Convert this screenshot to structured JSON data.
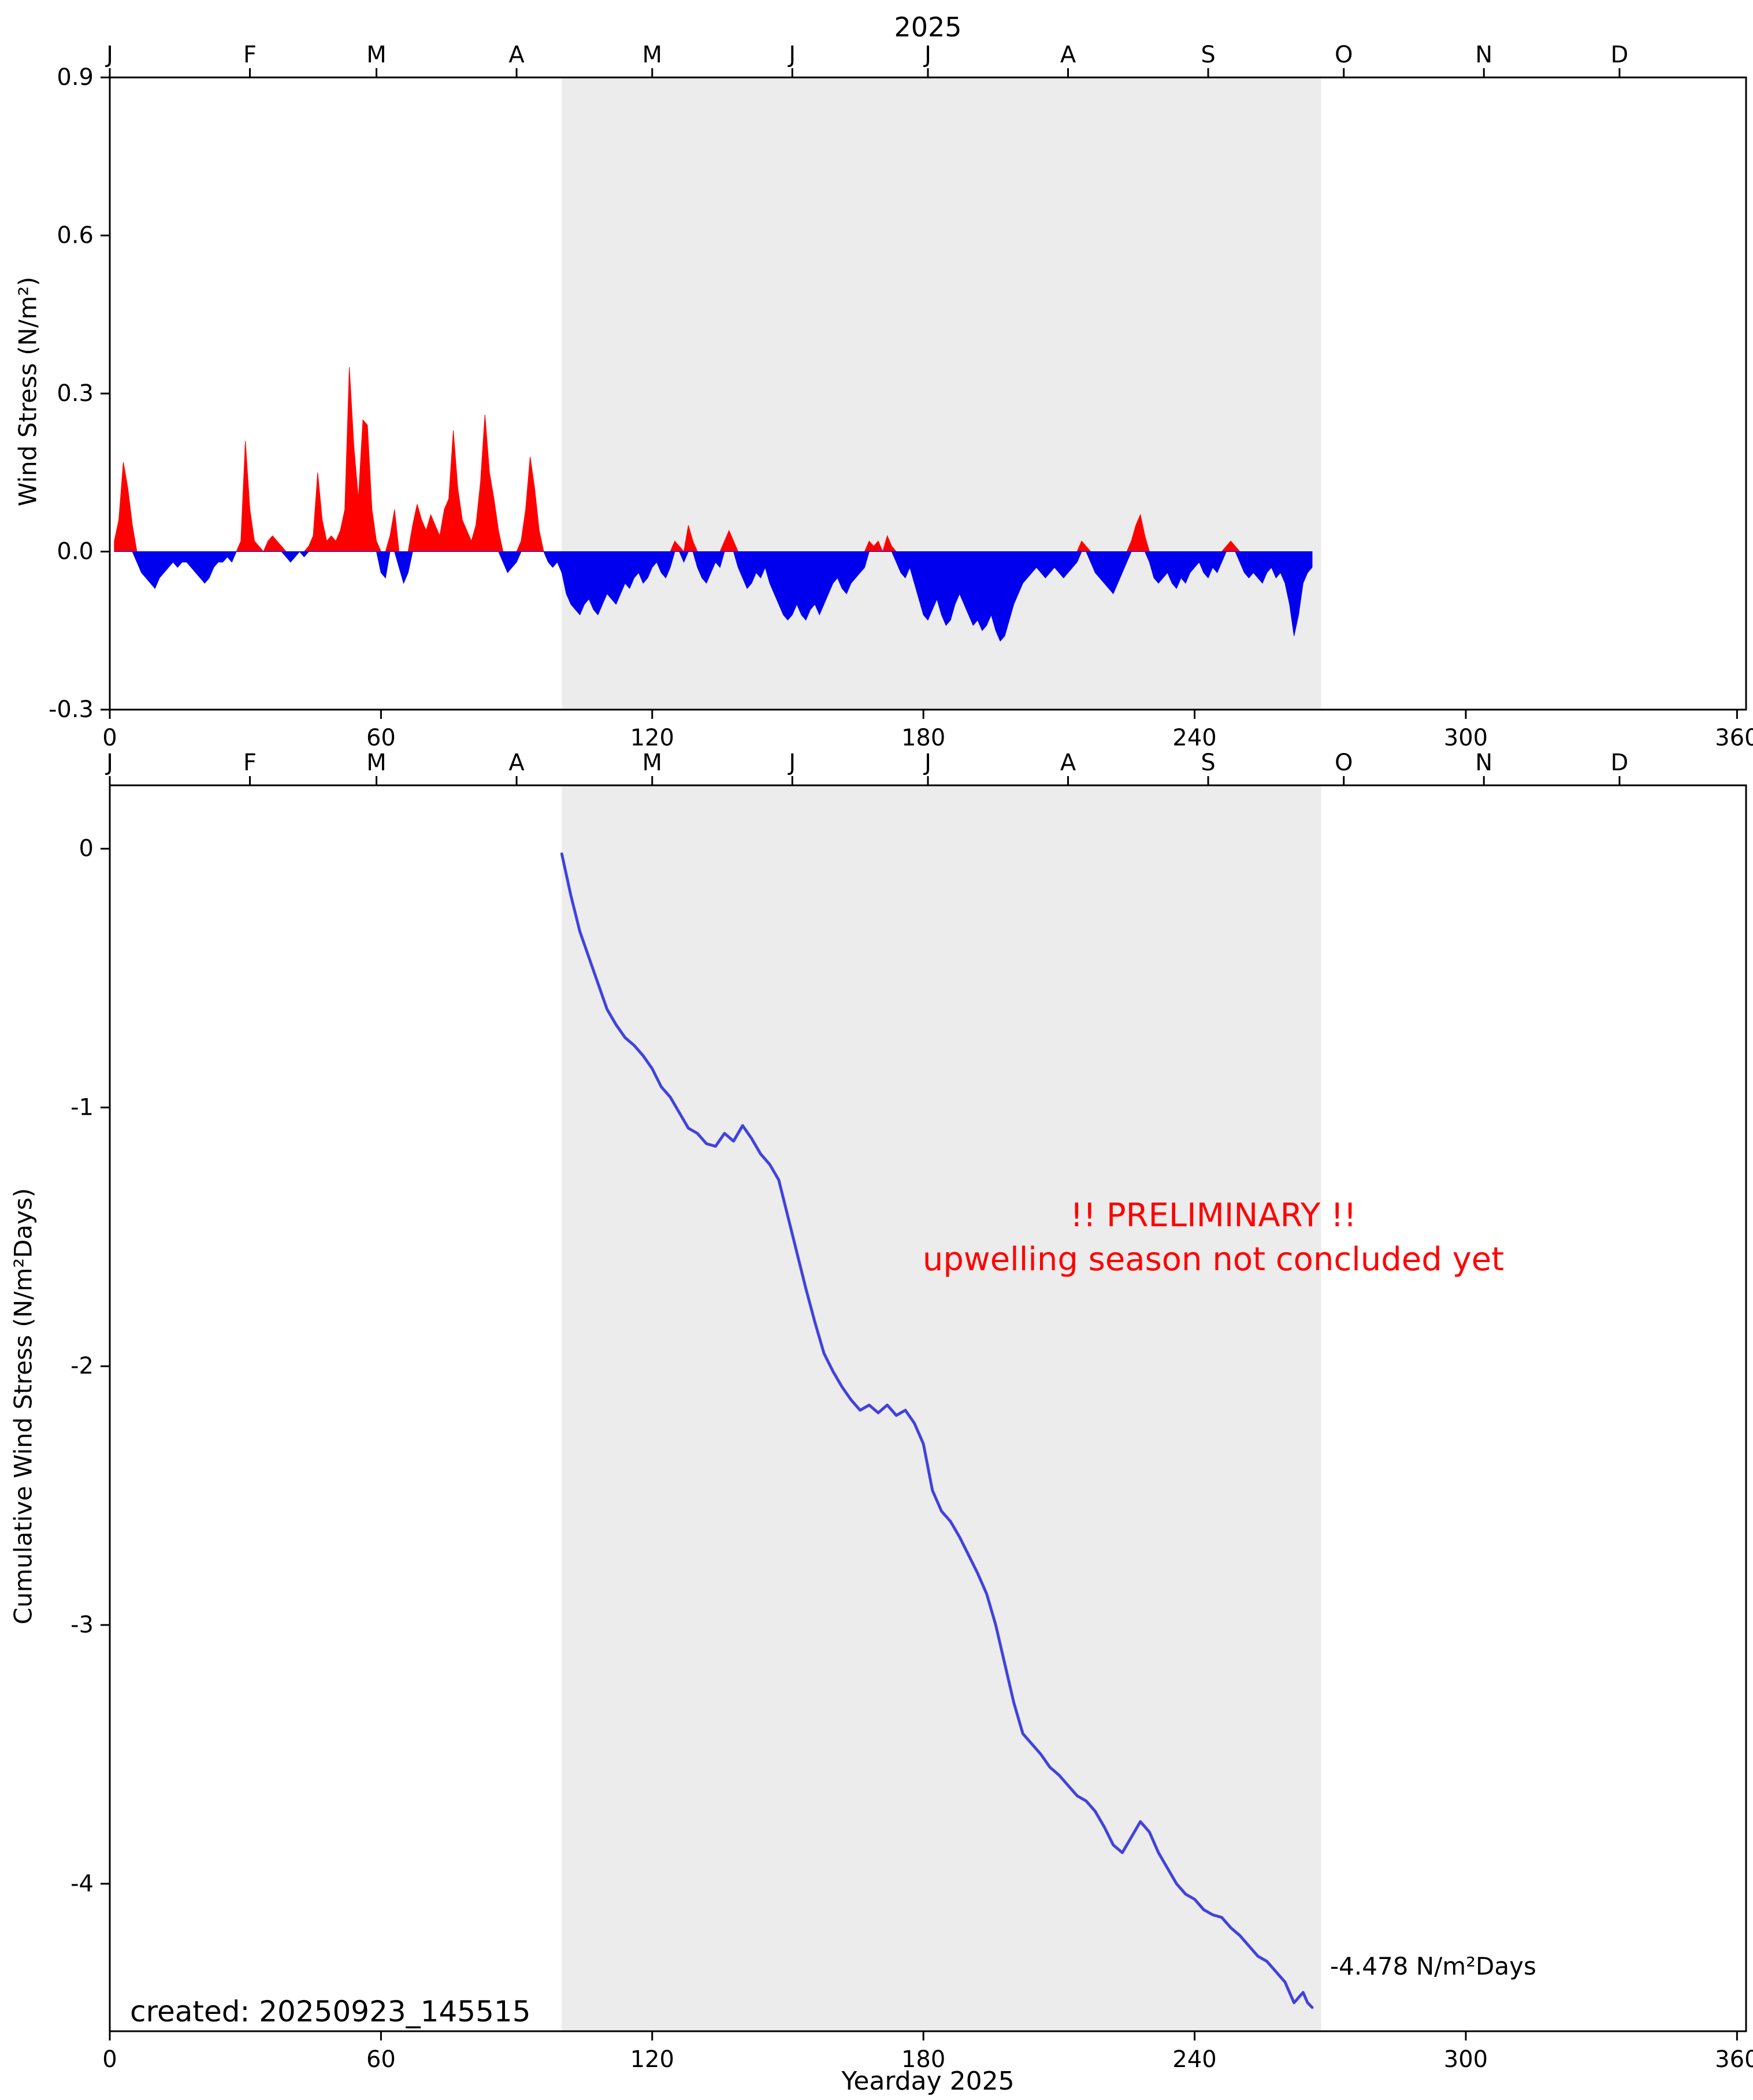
{
  "title": "2025",
  "created_label": "created: 20250923_145515",
  "final_annotation": "-4.478 N/m²Days",
  "x_label": "Yearday 2025",
  "x_range": [
    0,
    362
  ],
  "x_ticks": [
    0,
    60,
    120,
    180,
    240,
    300,
    360
  ],
  "months": [
    "J",
    "F",
    "M",
    "A",
    "M",
    "J",
    "J",
    "A",
    "S",
    "O",
    "N",
    "D"
  ],
  "month_start_days": [
    0,
    31,
    59,
    90,
    120,
    151,
    181,
    212,
    243,
    273,
    304,
    334
  ],
  "shade": {
    "start_day": 100,
    "end_day": 268,
    "color": "#ececec"
  },
  "preliminary": {
    "line1": "!! PRELIMINARY !!",
    "line2": "upwelling season not concluded yet",
    "color": "#ff0000"
  },
  "colors": {
    "positive": "#ff0000",
    "negative": "#0000ee",
    "cumulative_line": "#4242dd",
    "axis": "#000000"
  },
  "chart_data": [
    {
      "type": "area",
      "name": "wind-stress",
      "title": "2025",
      "ylabel": "Wind Stress (N/m²)",
      "ylim": [
        -0.3,
        0.9
      ],
      "yticks": [
        0.9,
        0.6,
        0.3,
        0.0,
        -0.3
      ],
      "ytick_labels": [
        "0.9",
        "0.6",
        "0.3",
        "0.0",
        "-0.3"
      ],
      "x_start_day": 1,
      "values": [
        0.02,
        0.06,
        0.17,
        0.12,
        0.05,
        -0.02,
        -0.04,
        -0.05,
        -0.06,
        -0.07,
        -0.05,
        -0.04,
        -0.03,
        -0.02,
        -0.03,
        -0.02,
        -0.02,
        -0.03,
        -0.04,
        -0.05,
        -0.06,
        -0.05,
        -0.03,
        -0.02,
        -0.02,
        -0.01,
        -0.02,
        0.0,
        0.02,
        0.21,
        0.08,
        0.02,
        0.01,
        0.0,
        0.02,
        0.03,
        0.02,
        0.01,
        -0.01,
        -0.02,
        -0.01,
        0.0,
        -0.01,
        0.01,
        0.03,
        0.15,
        0.06,
        0.02,
        0.03,
        0.02,
        0.04,
        0.08,
        0.35,
        0.2,
        0.1,
        0.25,
        0.24,
        0.08,
        0.02,
        -0.04,
        -0.05,
        0.03,
        0.08,
        -0.03,
        -0.06,
        -0.04,
        0.05,
        0.09,
        0.06,
        0.04,
        0.07,
        0.05,
        0.03,
        0.08,
        0.1,
        0.23,
        0.12,
        0.06,
        0.04,
        0.02,
        0.05,
        0.13,
        0.26,
        0.15,
        0.1,
        0.04,
        -0.02,
        -0.04,
        -0.03,
        -0.02,
        0.02,
        0.08,
        0.18,
        0.12,
        0.04,
        0.0,
        -0.02,
        -0.03,
        -0.02,
        -0.04,
        -0.08,
        -0.1,
        -0.11,
        -0.12,
        -0.1,
        -0.09,
        -0.11,
        -0.12,
        -0.1,
        -0.08,
        -0.09,
        -0.1,
        -0.08,
        -0.06,
        -0.07,
        -0.05,
        -0.04,
        -0.06,
        -0.05,
        -0.03,
        -0.02,
        -0.04,
        -0.05,
        -0.03,
        0.02,
        0.01,
        -0.02,
        0.05,
        0.02,
        -0.03,
        -0.05,
        -0.06,
        -0.04,
        -0.02,
        -0.03,
        0.02,
        0.04,
        0.02,
        -0.03,
        -0.05,
        -0.07,
        -0.06,
        -0.04,
        -0.05,
        -0.03,
        -0.06,
        -0.08,
        -0.1,
        -0.12,
        -0.13,
        -0.12,
        -0.1,
        -0.12,
        -0.13,
        -0.11,
        -0.1,
        -0.12,
        -0.1,
        -0.08,
        -0.06,
        -0.05,
        -0.07,
        -0.08,
        -0.06,
        -0.05,
        -0.04,
        -0.03,
        0.02,
        0.01,
        0.02,
        0.0,
        0.03,
        0.01,
        -0.02,
        -0.04,
        -0.05,
        -0.03,
        -0.06,
        -0.09,
        -0.12,
        -0.13,
        -0.11,
        -0.09,
        -0.12,
        -0.14,
        -0.13,
        -0.1,
        -0.08,
        -0.1,
        -0.12,
        -0.14,
        -0.13,
        -0.15,
        -0.14,
        -0.12,
        -0.15,
        -0.17,
        -0.16,
        -0.13,
        -0.1,
        -0.08,
        -0.06,
        -0.05,
        -0.04,
        -0.03,
        -0.04,
        -0.05,
        -0.04,
        -0.03,
        -0.04,
        -0.05,
        -0.04,
        -0.03,
        -0.02,
        0.02,
        0.01,
        -0.02,
        -0.04,
        -0.05,
        -0.06,
        -0.07,
        -0.08,
        -0.06,
        -0.04,
        -0.02,
        0.02,
        0.05,
        0.07,
        0.03,
        -0.02,
        -0.05,
        -0.06,
        -0.05,
        -0.04,
        -0.06,
        -0.07,
        -0.05,
        -0.06,
        -0.04,
        -0.03,
        -0.02,
        -0.04,
        -0.05,
        -0.03,
        -0.04,
        -0.02,
        0.01,
        0.02,
        0.01,
        -0.02,
        -0.04,
        -0.05,
        -0.04,
        -0.05,
        -0.06,
        -0.04,
        -0.03,
        -0.05,
        -0.04,
        -0.06,
        -0.1,
        -0.16,
        -0.12,
        -0.06,
        -0.04,
        -0.03
      ]
    },
    {
      "type": "line",
      "name": "cumulative-wind-stress",
      "ylabel": "Cumulative Wind Stress (N/m²Days)",
      "ylim": [
        -4.57,
        0.245
      ],
      "yticks": [
        0,
        -1,
        -2,
        -3,
        -4
      ],
      "ytick_labels": [
        "0",
        "-1",
        "-2",
        "-3",
        "-4"
      ],
      "final_value": -4.478,
      "x": [
        100,
        102,
        104,
        106,
        108,
        110,
        112,
        114,
        116,
        118,
        120,
        122,
        124,
        126,
        128,
        130,
        132,
        134,
        136,
        138,
        140,
        142,
        144,
        146,
        148,
        150,
        152,
        154,
        156,
        158,
        160,
        162,
        164,
        166,
        168,
        170,
        172,
        174,
        176,
        178,
        180,
        182,
        184,
        186,
        188,
        190,
        192,
        194,
        196,
        198,
        200,
        202,
        204,
        206,
        208,
        210,
        212,
        214,
        216,
        218,
        220,
        222,
        224,
        226,
        228,
        230,
        232,
        234,
        236,
        238,
        240,
        242,
        244,
        246,
        248,
        250,
        252,
        254,
        256,
        258,
        260,
        261,
        262,
        263,
        264,
        265,
        266
      ],
      "values": [
        -0.02,
        -0.18,
        -0.32,
        -0.42,
        -0.52,
        -0.62,
        -0.68,
        -0.73,
        -0.76,
        -0.8,
        -0.85,
        -0.92,
        -0.96,
        -1.02,
        -1.08,
        -1.1,
        -1.14,
        -1.15,
        -1.1,
        -1.13,
        -1.07,
        -1.12,
        -1.18,
        -1.22,
        -1.28,
        -1.42,
        -1.56,
        -1.7,
        -1.83,
        -1.95,
        -2.02,
        -2.08,
        -2.13,
        -2.17,
        -2.15,
        -2.18,
        -2.15,
        -2.19,
        -2.17,
        -2.22,
        -2.3,
        -2.48,
        -2.56,
        -2.6,
        -2.66,
        -2.73,
        -2.8,
        -2.88,
        -3.0,
        -3.15,
        -3.3,
        -3.42,
        -3.46,
        -3.5,
        -3.55,
        -3.58,
        -3.62,
        -3.66,
        -3.68,
        -3.72,
        -3.78,
        -3.85,
        -3.88,
        -3.82,
        -3.76,
        -3.8,
        -3.88,
        -3.94,
        -4.0,
        -4.04,
        -4.06,
        -4.1,
        -4.12,
        -4.13,
        -4.17,
        -4.2,
        -4.24,
        -4.28,
        -4.3,
        -4.34,
        -4.38,
        -4.42,
        -4.46,
        -4.44,
        -4.42,
        -4.46,
        -4.478
      ]
    }
  ]
}
